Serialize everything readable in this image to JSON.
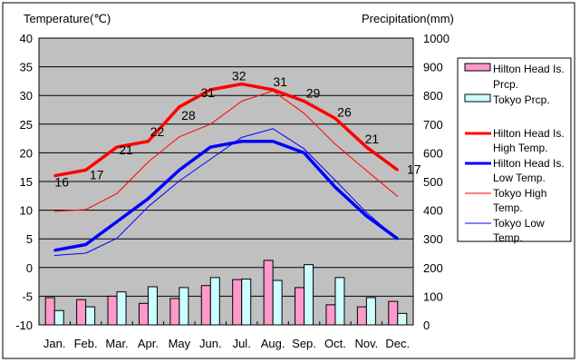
{
  "chart_data": {
    "type": "bar+line",
    "categories": [
      "Jan.",
      "Feb.",
      "Mar.",
      "Apr.",
      "May",
      "Jun.",
      "Jul.",
      "Aug.",
      "Sep.",
      "Oct.",
      "Nov.",
      "Dec."
    ],
    "y_left": {
      "label": "Temperature(℃)",
      "range": [
        -10,
        40
      ],
      "ticks": [
        "40",
        "35",
        "30",
        "25",
        "20",
        "15",
        "10",
        "5",
        "0",
        "-5",
        "-10"
      ]
    },
    "y_right": {
      "label": "Precipitation(mm)",
      "range": [
        0,
        1000
      ],
      "ticks": [
        "1000",
        "900",
        "800",
        "700",
        "600",
        "500",
        "400",
        "300",
        "200",
        "100",
        "0"
      ]
    },
    "grid": true,
    "legend_position": "right",
    "bar_series": [
      {
        "name": "Hilton Head Is. Prcp.",
        "legend_lines": [
          "Hilton Head Is.",
          "Prcp."
        ],
        "color": "#ff99cc",
        "axis": "right",
        "values": [
          95,
          88,
          100,
          75,
          92,
          137,
          158,
          225,
          130,
          70,
          63,
          82
        ]
      },
      {
        "name": "Tokyo Prcp.",
        "legend_lines": [
          "Tokyo Prcp."
        ],
        "color": "#ccffff",
        "axis": "right",
        "values": [
          50,
          63,
          115,
          133,
          130,
          165,
          160,
          155,
          210,
          165,
          95,
          40
        ]
      }
    ],
    "line_series": [
      {
        "name": "Hilton Head Is. High Temp.",
        "legend_lines": [
          "Hilton Head Is.",
          "High Temp."
        ],
        "color": "#ff0000",
        "width": "thick",
        "axis": "left",
        "values": [
          16,
          17,
          21,
          22,
          28,
          31,
          32,
          31,
          29,
          26,
          21,
          17
        ],
        "data_labels": [
          "16",
          "17",
          "21",
          "22",
          "28",
          "31",
          "32",
          "31",
          "29",
          "26",
          "21",
          "17"
        ]
      },
      {
        "name": "Hilton Head Is. Low Temp.",
        "legend_lines": [
          "Hilton Head Is.",
          "Low Temp."
        ],
        "color": "#0000ff",
        "width": "thick",
        "axis": "left",
        "values": [
          3,
          4,
          8,
          12,
          17,
          21,
          22,
          22,
          20,
          14,
          9,
          5
        ]
      },
      {
        "name": "Tokyo High Temp.",
        "legend_lines": [
          "Tokyo High",
          "Temp."
        ],
        "color": "#ff0000",
        "width": "thin",
        "axis": "left",
        "values": [
          9.8,
          10.1,
          12.9,
          18.4,
          22.8,
          25.0,
          29.0,
          30.8,
          26.9,
          21.5,
          16.9,
          12.4
        ]
      },
      {
        "name": "Tokyo Low Temp.",
        "legend_lines": [
          "Tokyo Low",
          "Temp."
        ],
        "color": "#0000ff",
        "width": "thin",
        "axis": "left",
        "values": [
          2.1,
          2.5,
          5.1,
          10.6,
          15.1,
          18.9,
          22.7,
          24.2,
          20.7,
          15.2,
          9.6,
          4.9
        ]
      }
    ]
  }
}
